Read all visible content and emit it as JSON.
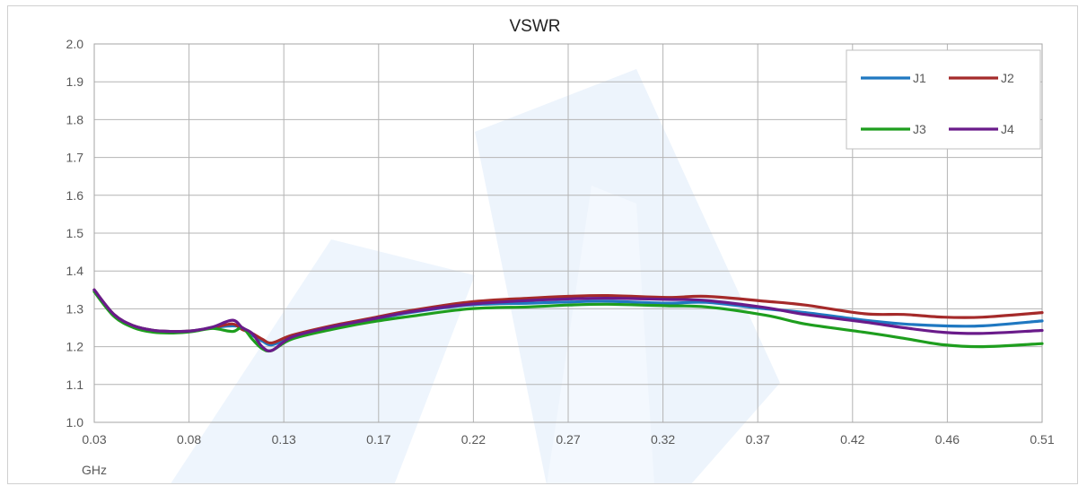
{
  "chart_data": {
    "type": "line",
    "title": "VSWR",
    "xlabel": "GHz",
    "ylabel": "",
    "xlim": [
      0.03,
      0.51
    ],
    "ylim": [
      1.0,
      2.0
    ],
    "x_ticks": [
      "0.03",
      "0.08",
      "0.13",
      "0.17",
      "0.22",
      "0.27",
      "0.32",
      "0.37",
      "0.42",
      "0.46",
      "0.51"
    ],
    "y_ticks": [
      "1.0",
      "1.1",
      "1.2",
      "1.3",
      "1.4",
      "1.5",
      "1.6",
      "1.7",
      "1.8",
      "1.9",
      "2.0"
    ],
    "grid": true,
    "legend_position": "top-right",
    "series": [
      {
        "name": "J1",
        "color": "#1f78c1",
        "x": [
          0.03,
          0.04,
          0.05,
          0.06,
          0.07,
          0.08,
          0.09,
          0.1,
          0.105,
          0.11,
          0.115,
          0.12,
          0.13,
          0.15,
          0.17,
          0.19,
          0.22,
          0.25,
          0.27,
          0.29,
          0.32,
          0.34,
          0.37,
          0.39,
          0.42,
          0.44,
          0.46,
          0.48,
          0.51
        ],
        "y": [
          1.35,
          1.285,
          1.255,
          1.243,
          1.24,
          1.242,
          1.25,
          1.255,
          1.25,
          1.23,
          1.215,
          1.205,
          1.225,
          1.25,
          1.27,
          1.29,
          1.31,
          1.315,
          1.318,
          1.32,
          1.315,
          1.317,
          1.3,
          1.29,
          1.27,
          1.26,
          1.255,
          1.255,
          1.268
        ]
      },
      {
        "name": "J2",
        "color": "#a52a2a",
        "x": [
          0.03,
          0.04,
          0.05,
          0.06,
          0.07,
          0.08,
          0.09,
          0.1,
          0.105,
          0.11,
          0.115,
          0.12,
          0.13,
          0.15,
          0.17,
          0.19,
          0.22,
          0.25,
          0.27,
          0.29,
          0.32,
          0.34,
          0.37,
          0.39,
          0.42,
          0.44,
          0.46,
          0.48,
          0.51
        ],
        "y": [
          1.35,
          1.285,
          1.255,
          1.243,
          1.24,
          1.242,
          1.25,
          1.26,
          1.245,
          1.235,
          1.22,
          1.21,
          1.23,
          1.255,
          1.275,
          1.295,
          1.318,
          1.328,
          1.333,
          1.335,
          1.33,
          1.333,
          1.32,
          1.31,
          1.287,
          1.285,
          1.278,
          1.278,
          1.29
        ]
      },
      {
        "name": "J3",
        "color": "#1e9e1e",
        "x": [
          0.03,
          0.04,
          0.05,
          0.06,
          0.07,
          0.08,
          0.09,
          0.1,
          0.105,
          0.11,
          0.115,
          0.12,
          0.13,
          0.15,
          0.17,
          0.19,
          0.22,
          0.25,
          0.27,
          0.29,
          0.32,
          0.34,
          0.37,
          0.39,
          0.42,
          0.44,
          0.46,
          0.48,
          0.51
        ],
        "y": [
          1.345,
          1.28,
          1.25,
          1.238,
          1.236,
          1.24,
          1.248,
          1.24,
          1.25,
          1.22,
          1.195,
          1.19,
          1.22,
          1.245,
          1.265,
          1.28,
          1.3,
          1.305,
          1.31,
          1.312,
          1.308,
          1.305,
          1.283,
          1.26,
          1.238,
          1.222,
          1.205,
          1.2,
          1.208
        ]
      },
      {
        "name": "J4",
        "color": "#6a1b8a",
        "x": [
          0.03,
          0.04,
          0.05,
          0.06,
          0.07,
          0.08,
          0.09,
          0.1,
          0.105,
          0.11,
          0.115,
          0.12,
          0.13,
          0.15,
          0.17,
          0.19,
          0.22,
          0.25,
          0.27,
          0.29,
          0.32,
          0.34,
          0.37,
          0.39,
          0.42,
          0.44,
          0.46,
          0.48,
          0.51
        ],
        "y": [
          1.35,
          1.285,
          1.255,
          1.243,
          1.24,
          1.242,
          1.252,
          1.27,
          1.25,
          1.235,
          1.2,
          1.19,
          1.225,
          1.252,
          1.272,
          1.292,
          1.312,
          1.322,
          1.326,
          1.328,
          1.325,
          1.322,
          1.303,
          1.285,
          1.265,
          1.25,
          1.238,
          1.235,
          1.243
        ]
      }
    ]
  }
}
